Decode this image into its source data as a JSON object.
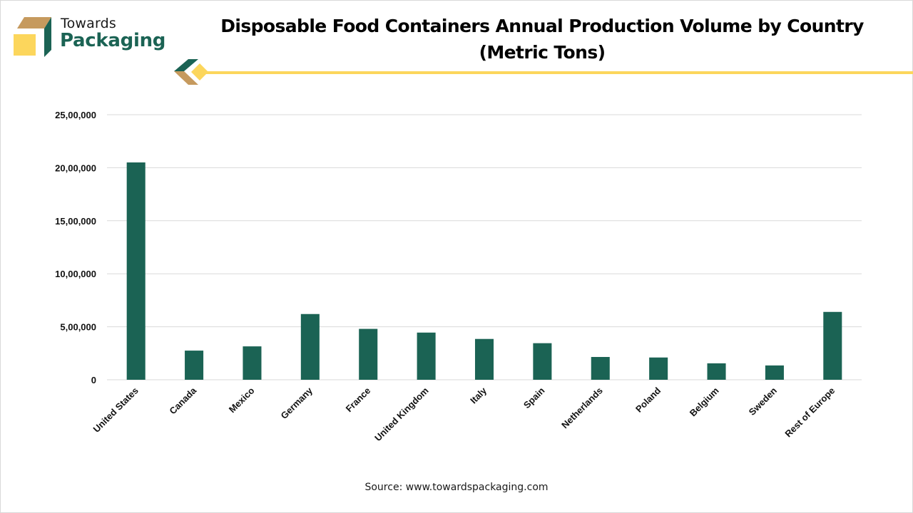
{
  "brand": {
    "line1": "Towards",
    "line2": "Packaging",
    "colors": {
      "green": "#1b6354",
      "tan": "#c69a5e",
      "yellow": "#fcd65c"
    }
  },
  "title_line1": "Disposable Food Containers Annual Production Volume by Country",
  "title_line2": "(Metric Tons)",
  "source": "Source: www.towardspackaging.com",
  "chart_data": {
    "type": "bar",
    "title": "Disposable Food Containers Annual Production Volume by Country (Metric Tons)",
    "xlabel": "",
    "ylabel": "",
    "categories": [
      "United States",
      "Canada",
      "Mexico",
      "Germany",
      "France",
      "United Kingdom",
      "Italy",
      "Spain",
      "Netherlands",
      "Poland",
      "Belgium",
      "Sweden",
      "Rest of Europe"
    ],
    "values": [
      2050000,
      275000,
      315000,
      620000,
      480000,
      445000,
      385000,
      345000,
      215000,
      210000,
      155000,
      135000,
      640000
    ],
    "ylim": [
      0,
      2500000
    ],
    "yticks": [
      0,
      500000,
      1000000,
      1500000,
      2000000,
      2500000
    ],
    "ytick_labels": [
      "0",
      "5,00,000",
      "10,00,000",
      "15,00,000",
      "20,00,000",
      "25,00,000"
    ],
    "grid": true,
    "legend": "none",
    "bar_color": "#1b6354",
    "grid_color": "#d9d9d9"
  }
}
